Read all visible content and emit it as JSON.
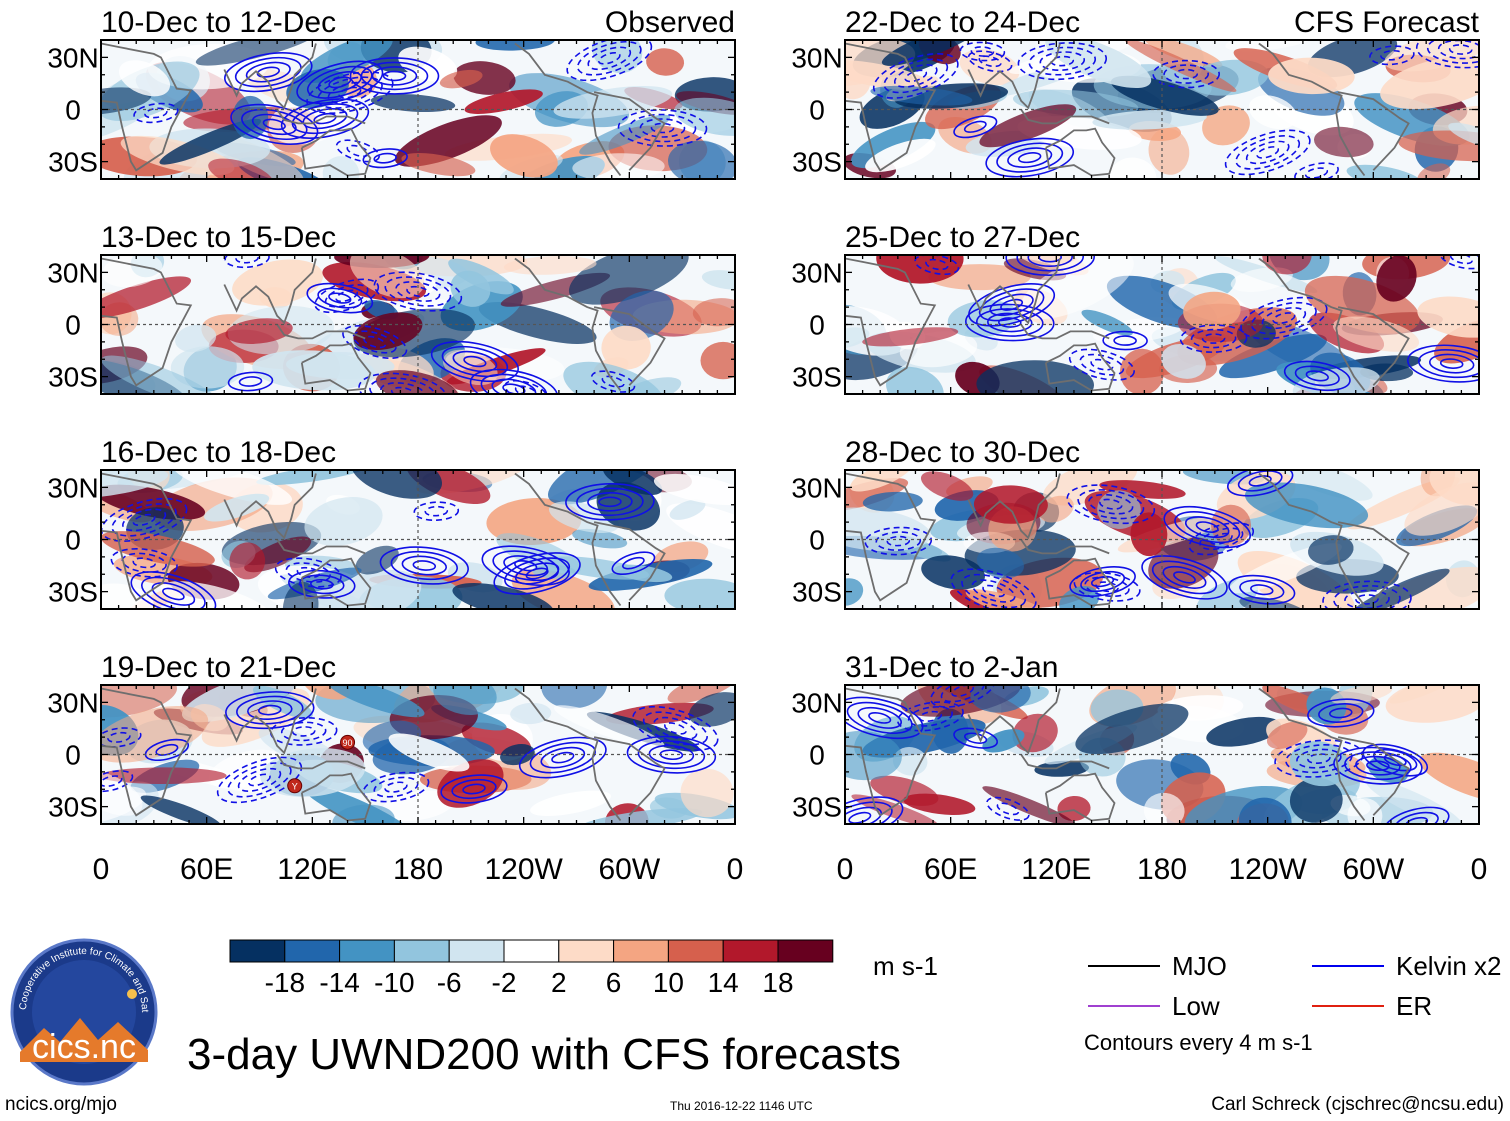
{
  "chart_data": {
    "type": "heatmap",
    "variable": "UWND200",
    "title": "3-day UWND200 with CFS forecasts",
    "units": "m s-1",
    "lat_ticks": [
      "30N",
      "0",
      "30S"
    ],
    "lon_ticks": [
      "0",
      "60E",
      "120E",
      "180",
      "120W",
      "60W",
      "0"
    ],
    "ylim": [
      -40,
      40
    ],
    "xlim": [
      0,
      360
    ],
    "panels": [
      {
        "period": "10-Dec to 12-Dec",
        "tag": "Observed"
      },
      {
        "period": "13-Dec to 15-Dec",
        "tag": ""
      },
      {
        "period": "16-Dec to 18-Dec",
        "tag": ""
      },
      {
        "period": "19-Dec to 21-Dec",
        "tag": ""
      },
      {
        "period": "22-Dec to 24-Dec",
        "tag": "CFS Forecast"
      },
      {
        "period": "25-Dec to 27-Dec",
        "tag": ""
      },
      {
        "period": "28-Dec to 30-Dec",
        "tag": ""
      },
      {
        "period": "31-Dec to 2-Jan",
        "tag": ""
      }
    ],
    "colorbar": {
      "labels": [
        "-18",
        "-14",
        "-10",
        "-6",
        "-2",
        "2",
        "6",
        "10",
        "14",
        "18"
      ],
      "colors": [
        "#053061",
        "#2166ac",
        "#4393c3",
        "#92c5de",
        "#d1e5f0",
        "#ffffff",
        "#fddbc7",
        "#f4a582",
        "#d6604d",
        "#b2182b",
        "#67001f"
      ]
    },
    "legend": [
      {
        "label": "MJO",
        "color": "#000000"
      },
      {
        "label": "Kelvin x2",
        "color": "#0000ee"
      },
      {
        "label": "Low",
        "color": "#a040d0"
      },
      {
        "label": "ER",
        "color": "#e02010"
      }
    ],
    "contour_note": "Contours every 4 m s-1",
    "storm_markers": [
      "90",
      "Y"
    ]
  },
  "footer": {
    "logo_text": "cics.nc",
    "logo_ring_text": "Cooperative Institute for Climate and Satellites",
    "url": "ncics.org/mjo",
    "timestamp": "Thu 2016-12-22 1146 UTC",
    "author": "Carl Schreck (cjschrec@ncsu.edu)"
  }
}
